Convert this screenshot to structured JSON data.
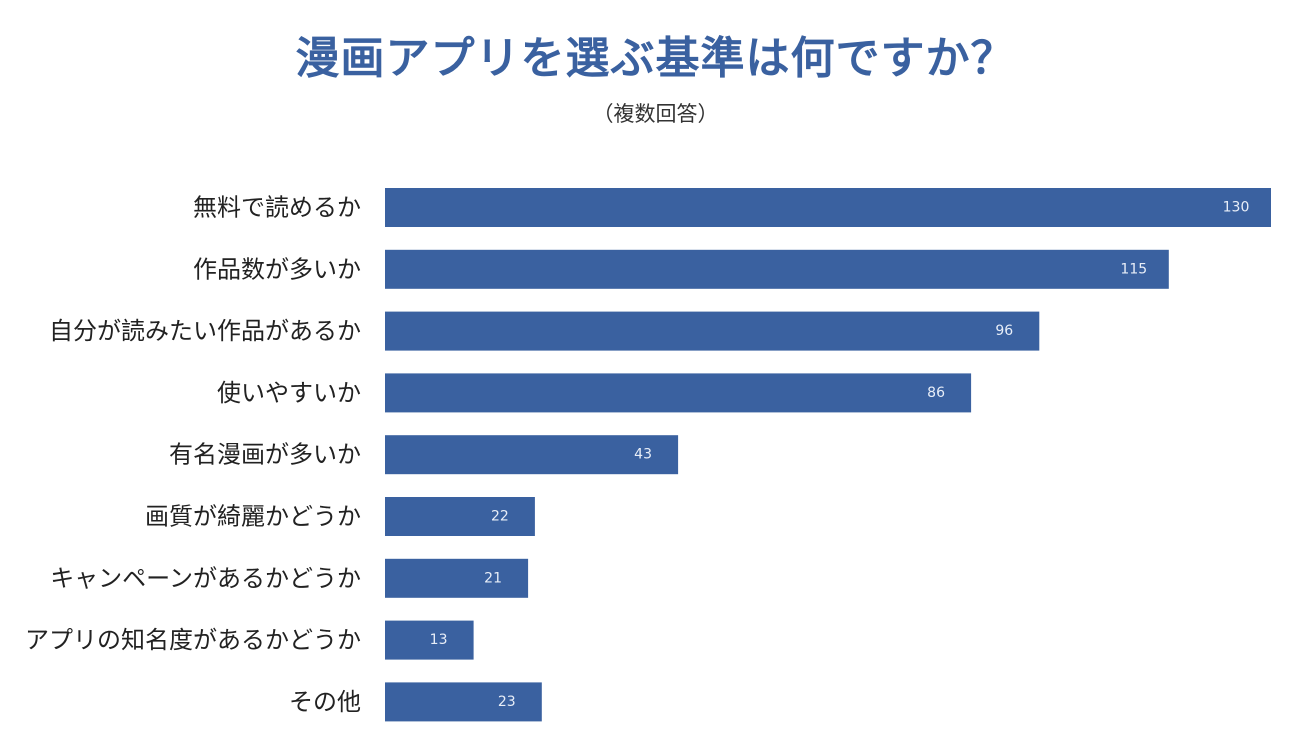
{
  "chart_data": {
    "type": "bar",
    "orientation": "horizontal",
    "title": "漫画アプリを選ぶ基準は何ですか？",
    "subtitle": "（複数回答）",
    "categories": [
      "無料で読めるか",
      "作品数が多いか",
      "自分が読みたい作品があるか",
      "使いやすいか",
      "有名漫画が多いか",
      "画質が綺麗かどうか",
      "キャンペーンがあるかどうか",
      "アプリの知名度があるかどうか",
      "その他"
    ],
    "values": [
      130,
      115,
      96,
      86,
      43,
      22,
      21,
      13,
      23
    ],
    "xlim": [
      0,
      130
    ],
    "grid": false,
    "legend": "none",
    "bar_color": "#3a61a0",
    "label_color": "#e8eef8"
  }
}
